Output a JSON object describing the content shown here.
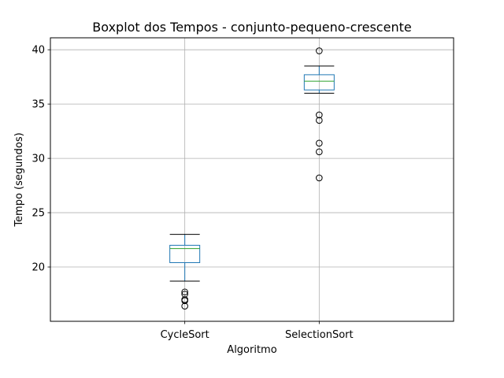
{
  "chart_data": {
    "type": "box",
    "title": "Boxplot dos Tempos - conjunto-pequeno-crescente",
    "xlabel": "Algoritmo",
    "ylabel": "Tempo (segundos)",
    "ylim": [
      15.0,
      41.1
    ],
    "yticks": [
      20,
      25,
      30,
      35,
      40
    ],
    "grid": true,
    "categories": [
      "CycleSort",
      "SelectionSort"
    ],
    "boxes": [
      {
        "name": "CycleSort",
        "whislo": 18.7,
        "q1": 20.4,
        "median": 21.7,
        "q3": 22.0,
        "whishi": 23.0,
        "fliers": [
          17.7,
          17.5,
          17.0,
          16.9,
          16.4
        ]
      },
      {
        "name": "SelectionSort",
        "whislo": 36.0,
        "q1": 36.3,
        "median": 37.1,
        "q3": 37.7,
        "whishi": 38.5,
        "fliers": [
          39.9,
          34.0,
          33.5,
          31.4,
          30.6,
          28.2
        ]
      }
    ],
    "colors": {
      "box": "#1f77b4",
      "median": "#2ca02c",
      "whisker": "#000000",
      "flier": "#000000",
      "grid": "#b0b0b0"
    }
  }
}
